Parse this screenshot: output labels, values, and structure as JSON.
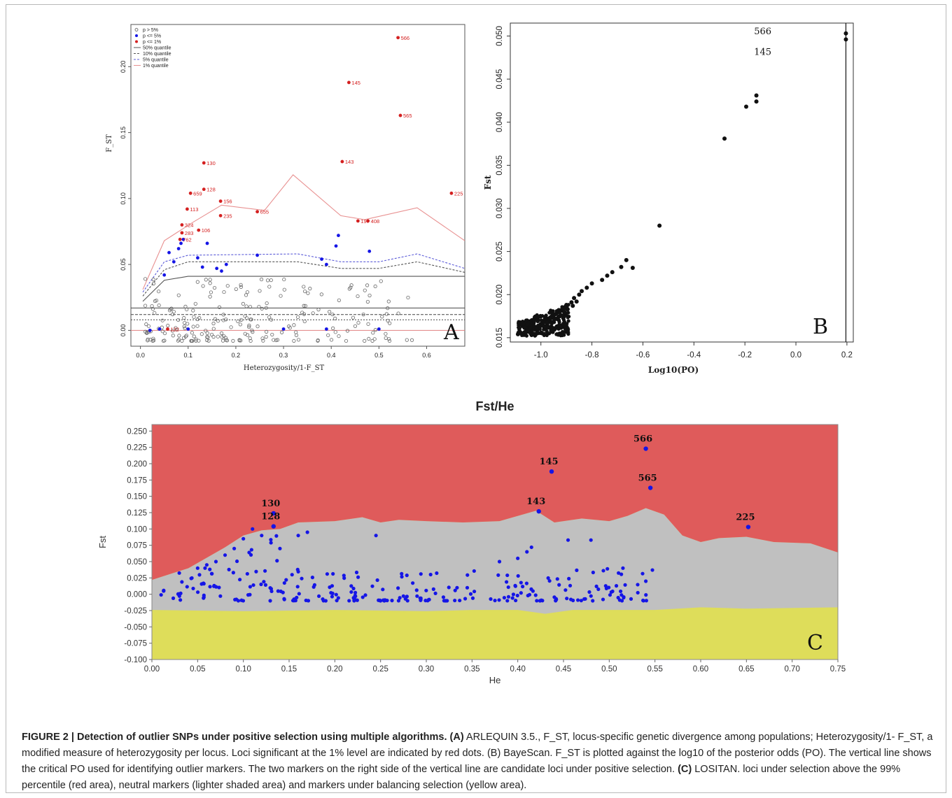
{
  "chart_data": [
    {
      "panel": "A",
      "type": "scatter",
      "xlabel": "Heterozygosity/1-F_ST",
      "ylabel": "F_ST",
      "panel_letter": "A",
      "xlim": [
        -0.02,
        0.68
      ],
      "ylim": [
        -0.012,
        0.232
      ],
      "xticks": [
        "0.0",
        "0.1",
        "0.2",
        "0.3",
        "0.4",
        "0.5",
        "0.6"
      ],
      "yticks": [
        "0.00",
        "0.05",
        "0.10",
        "0.15",
        "0.20"
      ],
      "legend": {
        "position": "top-left",
        "entries": [
          "p > 5%",
          "p <= 5%",
          "p <= 1%",
          "50% quantile",
          "10% quantile",
          "5% quantile",
          "1% quantile"
        ]
      },
      "quantile_lines": [
        {
          "name": "50% quantile",
          "x": [
            0.005,
            0.05,
            0.1,
            0.68
          ],
          "y": [
            0.022,
            0.038,
            0.041,
            0.041
          ]
        },
        {
          "name": "10% quantile",
          "x": [
            0.005,
            0.05,
            0.1,
            0.33,
            0.42,
            0.5,
            0.58,
            0.68
          ],
          "y": [
            0.026,
            0.046,
            0.052,
            0.052,
            0.047,
            0.047,
            0.052,
            0.044
          ]
        },
        {
          "name": "5% quantile",
          "x": [
            0.005,
            0.05,
            0.1,
            0.33,
            0.42,
            0.5,
            0.58,
            0.68
          ],
          "y": [
            0.029,
            0.052,
            0.057,
            0.058,
            0.052,
            0.052,
            0.058,
            0.047
          ]
        },
        {
          "name": "1% quantile",
          "x": [
            0.005,
            0.05,
            0.11,
            0.17,
            0.26,
            0.32,
            0.42,
            0.47,
            0.58,
            0.68
          ],
          "y": [
            0.031,
            0.068,
            0.082,
            0.095,
            0.091,
            0.118,
            0.087,
            0.084,
            0.093,
            0.068
          ]
        }
      ],
      "horizontal_lines": [
        0.017,
        0.012,
        0.008,
        0.0
      ],
      "outliers_1pct": [
        {
          "label": "566",
          "x": 0.54,
          "y": 0.222
        },
        {
          "label": "145",
          "x": 0.437,
          "y": 0.188
        },
        {
          "label": "565",
          "x": 0.545,
          "y": 0.163
        },
        {
          "label": "130",
          "x": 0.133,
          "y": 0.127
        },
        {
          "label": "143",
          "x": 0.423,
          "y": 0.128
        },
        {
          "label": "225",
          "x": 0.652,
          "y": 0.104
        },
        {
          "label": "128",
          "x": 0.133,
          "y": 0.107
        },
        {
          "label": "659",
          "x": 0.105,
          "y": 0.104
        },
        {
          "label": "156",
          "x": 0.168,
          "y": 0.098
        },
        {
          "label": "113",
          "x": 0.098,
          "y": 0.092
        },
        {
          "label": "655",
          "x": 0.245,
          "y": 0.09
        },
        {
          "label": "235",
          "x": 0.168,
          "y": 0.087
        },
        {
          "label": "197",
          "x": 0.456,
          "y": 0.083
        },
        {
          "label": "408",
          "x": 0.477,
          "y": 0.083
        },
        {
          "label": "324",
          "x": 0.087,
          "y": 0.08
        },
        {
          "label": "106",
          "x": 0.122,
          "y": 0.076
        },
        {
          "label": "283",
          "x": 0.087,
          "y": 0.074
        },
        {
          "label": "762",
          "x": 0.083,
          "y": 0.069
        },
        {
          "label": "122",
          "x": 0.057,
          "y": 0.001
        }
      ]
    },
    {
      "panel": "B",
      "type": "scatter",
      "xlabel": "Log10(PO)",
      "ylabel": "Fst",
      "panel_letter": "B",
      "xlim": [
        -1.12,
        0.225
      ],
      "ylim": [
        0.0145,
        0.0515
      ],
      "xticks": [
        "-1.0",
        "-0.8",
        "-0.6",
        "-0.4",
        "-0.2",
        "0.0",
        "0.2"
      ],
      "yticks": [
        "0.015",
        "0.020",
        "0.025",
        "0.030",
        "0.035",
        "0.040",
        "0.045",
        "0.050"
      ],
      "critical_line_x": 0.196,
      "labels": [
        {
          "text": "566",
          "x": -0.13,
          "y": 0.0502
        },
        {
          "text": "145",
          "x": -0.13,
          "y": 0.0478
        }
      ],
      "points": [
        [
          0.196,
          0.0503
        ],
        [
          0.196,
          0.0496
        ],
        [
          -0.155,
          0.0431
        ],
        [
          -0.155,
          0.0424
        ],
        [
          -0.195,
          0.0418
        ],
        [
          -0.28,
          0.0381
        ],
        [
          -0.535,
          0.028
        ],
        [
          -0.665,
          0.024
        ],
        [
          -0.64,
          0.0231
        ],
        [
          -0.685,
          0.0232
        ],
        [
          -0.72,
          0.0226
        ],
        [
          -0.74,
          0.0222
        ],
        [
          -0.76,
          0.0217
        ],
        [
          -0.8,
          0.0213
        ],
        [
          -0.82,
          0.0208
        ],
        [
          -0.84,
          0.0204
        ],
        [
          -0.85,
          0.02
        ],
        [
          -0.87,
          0.0196
        ],
        [
          -0.88,
          0.0191
        ],
        [
          -0.9,
          0.0188
        ],
        [
          -0.91,
          0.0185
        ],
        [
          -0.93,
          0.0182
        ],
        [
          -0.94,
          0.0178
        ],
        [
          -0.95,
          0.0176
        ],
        [
          -0.97,
          0.0172
        ],
        [
          -0.98,
          0.017
        ],
        [
          -0.99,
          0.0168
        ],
        [
          -1.0,
          0.0166
        ],
        [
          -1.01,
          0.0164
        ],
        [
          -1.02,
          0.0162
        ],
        [
          -1.03,
          0.016
        ],
        [
          -1.04,
          0.0159
        ],
        [
          -1.05,
          0.0157
        ],
        [
          -1.06,
          0.0156
        ],
        [
          -1.07,
          0.0155
        ],
        [
          -1.09,
          0.0154
        ],
        [
          -0.96,
          0.0158
        ],
        [
          -0.985,
          0.0161
        ],
        [
          -0.995,
          0.0155
        ],
        [
          -1.015,
          0.0158
        ],
        [
          -0.975,
          0.0165
        ],
        [
          -0.955,
          0.0168
        ],
        [
          -0.965,
          0.0162
        ],
        [
          -1.025,
          0.0154
        ],
        [
          -0.945,
          0.0172
        ],
        [
          -0.925,
          0.0175
        ],
        [
          -0.905,
          0.0179
        ],
        [
          -0.895,
          0.0183
        ],
        [
          -0.875,
          0.0187
        ],
        [
          -0.86,
          0.0192
        ]
      ]
    },
    {
      "panel": "C",
      "type": "scatter",
      "title": "Fst/He",
      "xlabel": "He",
      "ylabel": "Fst",
      "panel_letter": "C",
      "xlim": [
        0.0,
        0.75
      ],
      "ylim": [
        -0.1,
        0.26
      ],
      "xticks": [
        "0.00",
        "0.05",
        "0.10",
        "0.15",
        "0.20",
        "0.25",
        "0.30",
        "0.35",
        "0.40",
        "0.45",
        "0.50",
        "0.55",
        "0.60",
        "0.65",
        "0.70",
        "0.75"
      ],
      "yticks": [
        "-0.100",
        "-0.075",
        "-0.050",
        "-0.025",
        "0.000",
        "0.025",
        "0.050",
        "0.075",
        "0.100",
        "0.125",
        "0.150",
        "0.175",
        "0.200",
        "0.225",
        "0.250"
      ],
      "regions": {
        "upper_boundary": {
          "x": [
            0.0,
            0.04,
            0.08,
            0.1,
            0.12,
            0.14,
            0.16,
            0.2,
            0.23,
            0.25,
            0.27,
            0.3,
            0.34,
            0.38,
            0.42,
            0.44,
            0.47,
            0.5,
            0.52,
            0.54,
            0.56,
            0.58,
            0.6,
            0.62,
            0.65,
            0.68,
            0.72,
            0.75
          ],
          "y": [
            0.022,
            0.04,
            0.072,
            0.09,
            0.098,
            0.1,
            0.11,
            0.112,
            0.118,
            0.11,
            0.114,
            0.112,
            0.11,
            0.112,
            0.128,
            0.11,
            0.116,
            0.112,
            0.12,
            0.132,
            0.122,
            0.09,
            0.08,
            0.086,
            0.088,
            0.08,
            0.078,
            0.064
          ]
        },
        "lower_boundary": {
          "x": [
            0.0,
            0.1,
            0.2,
            0.3,
            0.35,
            0.4,
            0.43,
            0.46,
            0.55,
            0.6,
            0.65,
            0.75
          ],
          "y": [
            -0.024,
            -0.026,
            -0.024,
            -0.026,
            -0.024,
            -0.024,
            -0.03,
            -0.024,
            -0.024,
            -0.02,
            -0.022,
            -0.02
          ]
        }
      },
      "labeled_points": [
        {
          "label": "566",
          "x": 0.54,
          "y": 0.223
        },
        {
          "label": "145",
          "x": 0.437,
          "y": 0.188
        },
        {
          "label": "565",
          "x": 0.545,
          "y": 0.163
        },
        {
          "label": "130",
          "x": 0.133,
          "y": 0.124
        },
        {
          "label": "143",
          "x": 0.423,
          "y": 0.127
        },
        {
          "label": "128",
          "x": 0.133,
          "y": 0.104
        },
        {
          "label": "225",
          "x": 0.652,
          "y": 0.103
        }
      ]
    }
  ],
  "caption": {
    "title": "FIGURE 2 | Detection of outlier SNPs under positive selection using multiple algorithms.",
    "part_a_label": "(A)",
    "part_a": "ARLEQUIN 3.5., F_ST, locus-specific genetic divergence among populations; Heterozygosity/1- F_ST, a modified measure of heterozygosity per locus. Loci significant at the 1% level are indicated by red dots.",
    "part_b": "(B) BayeScan. F_ST is plotted against the log10 of the posterior odds (PO). The vertical line shows the critical PO used for identifying outlier markers. The two markers on the right side of the vertical line are candidate loci under positive selection.",
    "part_c_label": "(C)",
    "part_c": "LOSITAN. loci under selection above the 99% percentile (red area), neutral markers (lighter shaded area) and markers under balancing selection (yellow area)."
  },
  "colors": {
    "red_area": "#df5b5b",
    "grey_area": "#c0c0c0",
    "yellow_area": "#dedd5a",
    "blue_point": "#1515e6",
    "red_point": "#d42020"
  }
}
